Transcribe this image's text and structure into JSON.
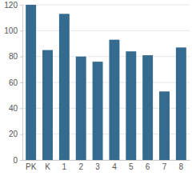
{
  "chart_data": {
    "type": "bar",
    "categories": [
      "PK",
      "K",
      "1",
      "2",
      "3",
      "4",
      "5",
      "6",
      "7",
      "8"
    ],
    "values": [
      120,
      85,
      113,
      80,
      76,
      93,
      84,
      81,
      53,
      87
    ],
    "color": "#346b8f",
    "ylim": [
      0,
      120
    ],
    "yticks": [
      0,
      20,
      40,
      60,
      80,
      100,
      120
    ],
    "grid": true
  }
}
